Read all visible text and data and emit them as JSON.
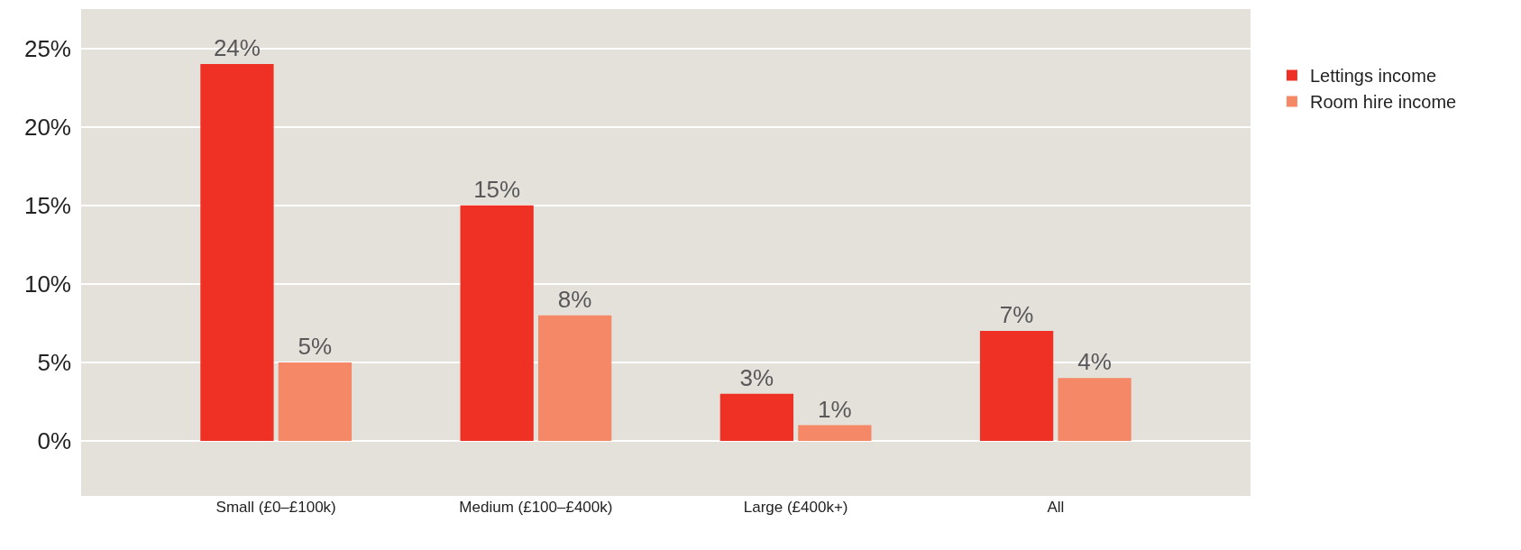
{
  "chart_data": {
    "type": "bar",
    "categories": [
      "Small (£0–£100k)",
      "Medium (£100–£400k)",
      "Large (£400k+)",
      "All"
    ],
    "series": [
      {
        "name": "Lettings income",
        "color": "#ee3124",
        "values": [
          24,
          15,
          3,
          7
        ]
      },
      {
        "name": "Room hire income",
        "color": "#f58866",
        "values": [
          5,
          8,
          1,
          4
        ]
      }
    ],
    "ylim": [
      -3.5,
      27.5
    ],
    "yticks": [
      {
        "value": 0,
        "label": "0%"
      },
      {
        "value": 5,
        "label": "5%"
      },
      {
        "value": 10,
        "label": "10%"
      },
      {
        "value": 15,
        "label": "15%"
      },
      {
        "value": 20,
        "label": "20%"
      },
      {
        "value": 25,
        "label": "25%"
      }
    ],
    "value_labels": [
      [
        "24%",
        "15%",
        "3%",
        "7%"
      ],
      [
        "5%",
        "8%",
        "1%",
        "4%"
      ]
    ],
    "grid": "y",
    "legend": "right"
  }
}
